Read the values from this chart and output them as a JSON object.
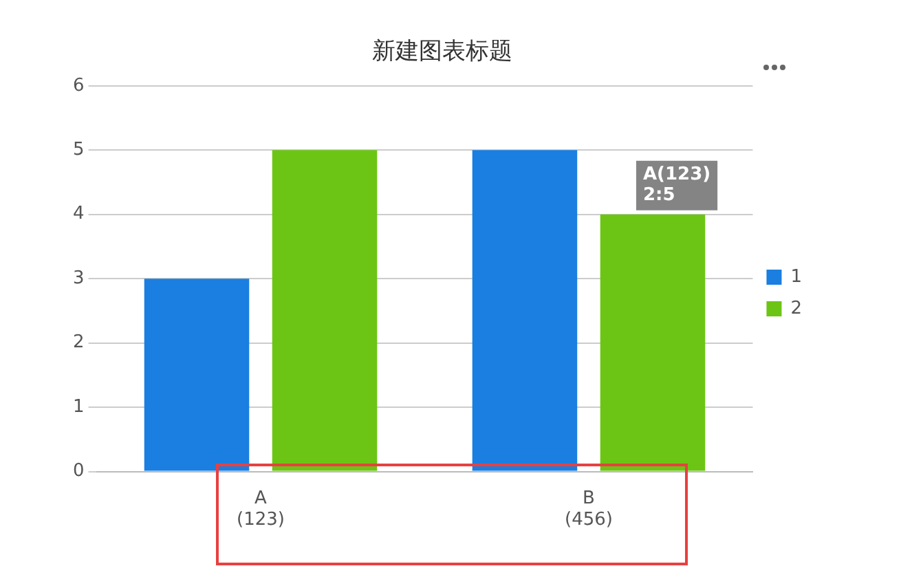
{
  "chart_data": {
    "type": "bar",
    "title": "新建图表标题",
    "categories": [
      "A\n(123)",
      "B\n(456)"
    ],
    "series": [
      {
        "name": "1",
        "color": "#1a7fe0",
        "values": [
          3,
          5
        ]
      },
      {
        "name": "2",
        "color": "#6cc514",
        "values": [
          5,
          4
        ]
      }
    ],
    "ylim": [
      0,
      6
    ],
    "yticks": [
      0,
      1,
      2,
      3,
      4,
      5,
      6
    ],
    "grid": "y",
    "legend": "right",
    "annotations": [
      "A(123)\n2:5"
    ]
  }
}
